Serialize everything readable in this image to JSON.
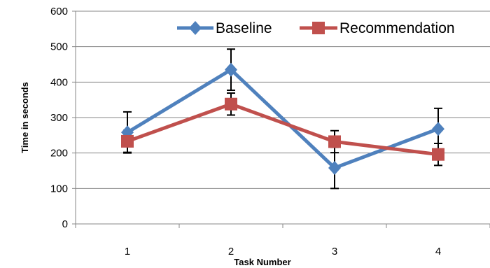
{
  "chart_data": {
    "type": "line",
    "categories": [
      "1",
      "2",
      "3",
      "4"
    ],
    "xlabel": "Task Number",
    "ylabel": "Time in seconds",
    "ylim": [
      0,
      600
    ],
    "yticks": [
      "0",
      "100",
      "200",
      "300",
      "400",
      "500",
      "600"
    ],
    "grid": "horizontal major gridlines on",
    "legend_position": "top-right",
    "error_bars": true,
    "series": [
      {
        "name": "Baseline",
        "color": "#4F81BD",
        "marker": "diamond",
        "values": [
          258,
          435,
          158,
          268
        ],
        "error": [
          58,
          58,
          58,
          58
        ]
      },
      {
        "name": "Recommendation",
        "color": "#C0504D",
        "marker": "square",
        "values": [
          233,
          338,
          232,
          196
        ],
        "error": [
          31,
          31,
          31,
          31
        ]
      }
    ]
  }
}
